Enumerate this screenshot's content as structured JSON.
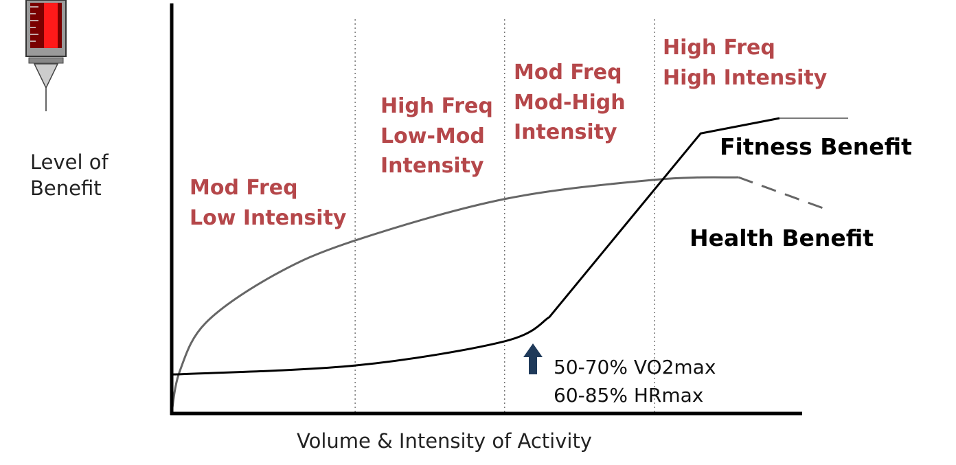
{
  "chart_data": {
    "type": "line",
    "title": "",
    "xlabel": "Volume & Intensity of Activity",
    "ylabel": "Level of\nBenefit",
    "xlim": [
      0,
      100
    ],
    "ylim": [
      0,
      100
    ],
    "grid": false,
    "zone_boundaries": [
      29.1,
      52.8,
      76.6
    ],
    "zones": [
      "Mod Freq\nLow Intensity",
      "High Freq\nLow-Mod\nIntensity",
      "Mod Freq\nMod-High\nIntensity",
      "High Freq\nHigh Intensity"
    ],
    "series": [
      {
        "name": "Health Benefit",
        "color": "#666666",
        "x": [
          0,
          1.3,
          5.4,
          16.3,
          29.1,
          52.8,
          76.6,
          89.9
        ],
        "y": [
          0.3,
          10.4,
          22.1,
          33.8,
          42.2,
          52.3,
          57.0,
          57.6
        ],
        "dashed_extension": {
          "x": [
            89.9,
            104
          ],
          "y": [
            57.6,
            49.7
          ]
        }
      },
      {
        "name": "Fitness Benefit",
        "color": "#000000",
        "x": [
          0,
          29.1,
          52.8,
          59.9,
          83.9,
          96.4
        ],
        "y": [
          9.5,
          11.7,
          17.6,
          23.5,
          68.3,
          72.0
        ],
        "solid_extension": {
          "x": [
            96.4,
            107.3
          ],
          "y": [
            72.0,
            72.0
          ]
        }
      }
    ],
    "annotation": {
      "x": 57.5,
      "text": "50-70% VO2max\n60-85% HRmax",
      "arrow_color": "#1f3a5a"
    },
    "zone_label_color": "#b5474a"
  }
}
